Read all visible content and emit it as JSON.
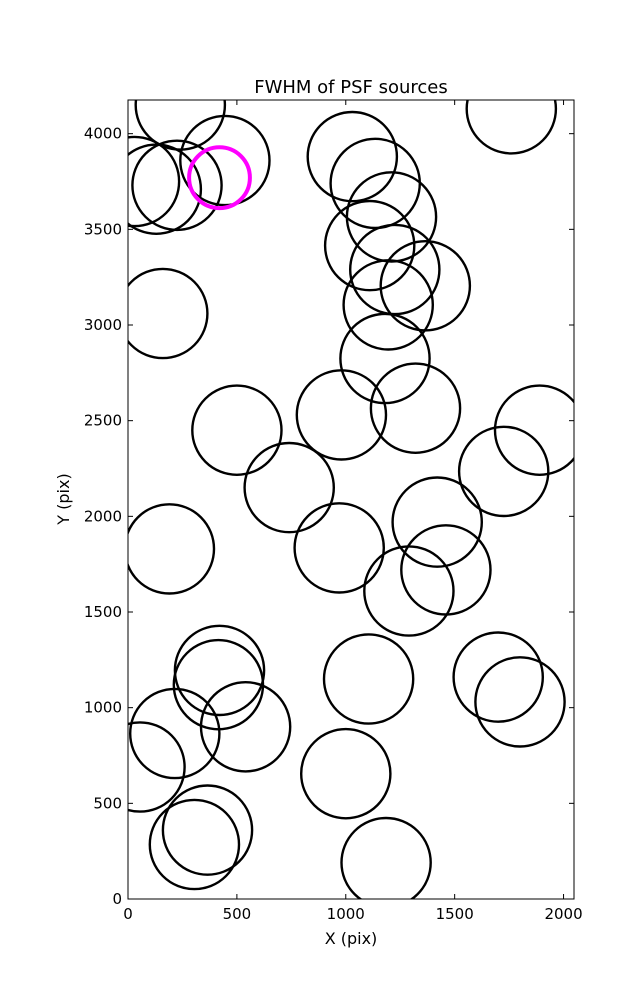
{
  "chart_data": {
    "type": "scatter",
    "title": "FWHM of PSF sources",
    "xlabel": "X (pix)",
    "ylabel": "Y (pix)",
    "xlim": [
      0,
      2048
    ],
    "ylim": [
      0,
      4176
    ],
    "xticks": [
      0,
      500,
      1000,
      1500,
      2000
    ],
    "yticks": [
      0,
      500,
      1000,
      1500,
      2000,
      2500,
      3000,
      3500,
      4000
    ],
    "grid": false,
    "marker": "circle",
    "radius_pix": 205,
    "default_color": "#000000",
    "highlight_color": "#ff00ff",
    "points": [
      {
        "x": 240,
        "y": 4150
      },
      {
        "x": 30,
        "y": 3750
      },
      {
        "x": 130,
        "y": 3710
      },
      {
        "x": 225,
        "y": 3730
      },
      {
        "x": 445,
        "y": 3860
      },
      {
        "x": 420,
        "y": 3770,
        "highlight": true
      },
      {
        "x": 1760,
        "y": 4130
      },
      {
        "x": 1030,
        "y": 3880
      },
      {
        "x": 1135,
        "y": 3740
      },
      {
        "x": 1210,
        "y": 3565
      },
      {
        "x": 1110,
        "y": 3415
      },
      {
        "x": 1225,
        "y": 3290
      },
      {
        "x": 1365,
        "y": 3205
      },
      {
        "x": 1195,
        "y": 3105
      },
      {
        "x": 160,
        "y": 3060
      },
      {
        "x": 1180,
        "y": 2825
      },
      {
        "x": 980,
        "y": 2530
      },
      {
        "x": 1320,
        "y": 2565
      },
      {
        "x": 500,
        "y": 2450
      },
      {
        "x": 1890,
        "y": 2450
      },
      {
        "x": 1725,
        "y": 2235
      },
      {
        "x": 740,
        "y": 2150
      },
      {
        "x": 1420,
        "y": 1970
      },
      {
        "x": 190,
        "y": 1830
      },
      {
        "x": 970,
        "y": 1835
      },
      {
        "x": 1460,
        "y": 1720
      },
      {
        "x": 1290,
        "y": 1610
      },
      {
        "x": 420,
        "y": 1195
      },
      {
        "x": 415,
        "y": 1120
      },
      {
        "x": 1105,
        "y": 1150
      },
      {
        "x": 1700,
        "y": 1160
      },
      {
        "x": 1800,
        "y": 1030
      },
      {
        "x": 215,
        "y": 865
      },
      {
        "x": 540,
        "y": 900
      },
      {
        "x": 55,
        "y": 690
      },
      {
        "x": 1000,
        "y": 655
      },
      {
        "x": 365,
        "y": 360
      },
      {
        "x": 305,
        "y": 285
      },
      {
        "x": 1185,
        "y": 190
      }
    ]
  }
}
